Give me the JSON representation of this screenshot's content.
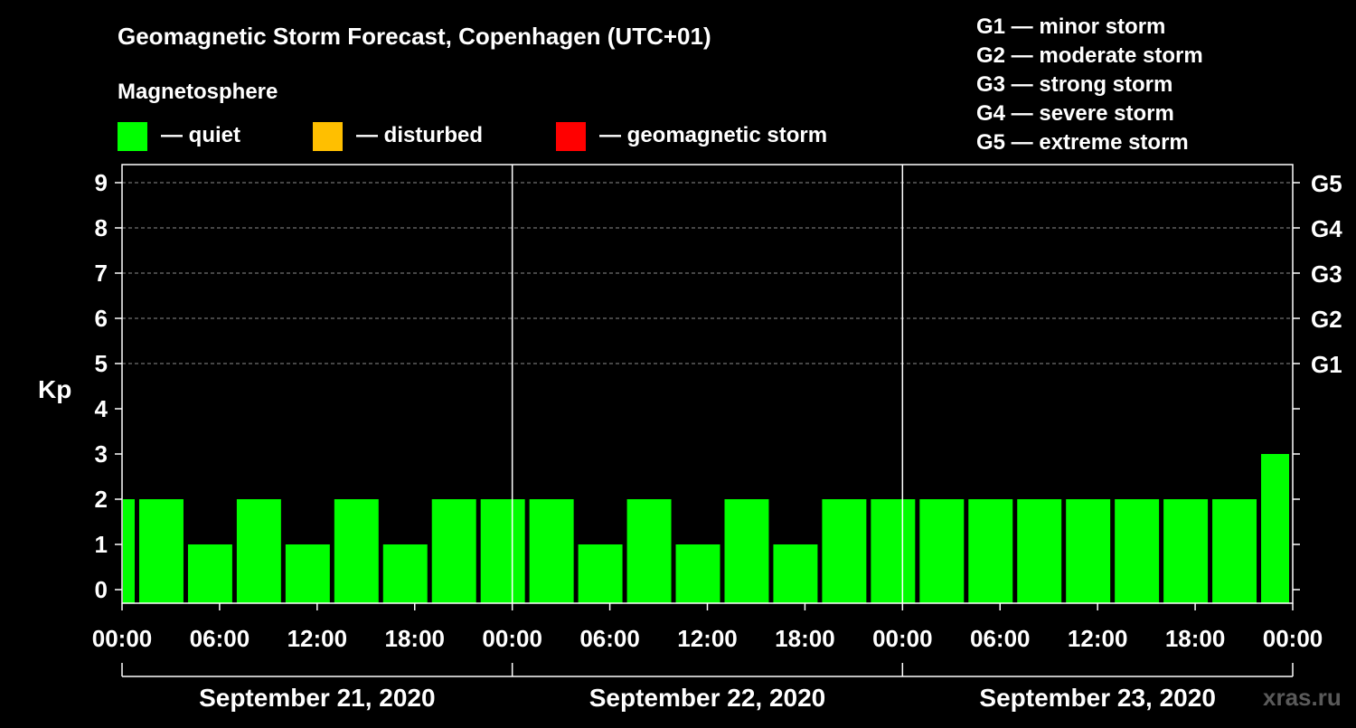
{
  "title": "Geomagnetic Storm Forecast, Copenhagen (UTC+01)",
  "legend": {
    "heading": "Magnetosphere",
    "items": [
      {
        "color": "#00ff00",
        "label": "— quiet"
      },
      {
        "color": "#ffbf00",
        "label": "— disturbed"
      },
      {
        "color": "#ff0000",
        "label": "— geomagnetic storm"
      }
    ]
  },
  "storm_scale": [
    "G1 — minor storm",
    "G2 — moderate storm",
    "G3 — strong storm",
    "G4 — severe storm",
    "G5 — extreme storm"
  ],
  "watermark": "xras.ru",
  "chart_data": {
    "type": "bar",
    "ylabel": "Kp",
    "ylim": [
      0,
      9
    ],
    "yticks": [
      0,
      1,
      2,
      3,
      4,
      5,
      6,
      7,
      8,
      9
    ],
    "right_ticks": [
      {
        "value": 5,
        "label": "G1"
      },
      {
        "value": 6,
        "label": "G2"
      },
      {
        "value": 7,
        "label": "G3"
      },
      {
        "value": 8,
        "label": "G4"
      },
      {
        "value": 9,
        "label": "G5"
      }
    ],
    "x_tick_labels": [
      "00:00",
      "06:00",
      "12:00",
      "18:00",
      "00:00",
      "06:00",
      "12:00",
      "18:00",
      "00:00",
      "06:00",
      "12:00",
      "18:00",
      "00:00"
    ],
    "days": [
      "September 21, 2020",
      "September 22, 2020",
      "September 23, 2020"
    ],
    "grid": true,
    "bars": [
      {
        "start": "2020-09-21 00:00",
        "end": "2020-09-21 01:00",
        "value": 2
      },
      {
        "start": "2020-09-21 01:00",
        "end": "2020-09-21 04:00",
        "value": 2
      },
      {
        "start": "2020-09-21 04:00",
        "end": "2020-09-21 07:00",
        "value": 1
      },
      {
        "start": "2020-09-21 07:00",
        "end": "2020-09-21 10:00",
        "value": 2
      },
      {
        "start": "2020-09-21 10:00",
        "end": "2020-09-21 13:00",
        "value": 1
      },
      {
        "start": "2020-09-21 13:00",
        "end": "2020-09-21 16:00",
        "value": 2
      },
      {
        "start": "2020-09-21 16:00",
        "end": "2020-09-21 19:00",
        "value": 1
      },
      {
        "start": "2020-09-21 19:00",
        "end": "2020-09-21 22:00",
        "value": 2
      },
      {
        "start": "2020-09-21 22:00",
        "end": "2020-09-22 01:00",
        "value": 2
      },
      {
        "start": "2020-09-22 01:00",
        "end": "2020-09-22 04:00",
        "value": 2
      },
      {
        "start": "2020-09-22 04:00",
        "end": "2020-09-22 07:00",
        "value": 1
      },
      {
        "start": "2020-09-22 07:00",
        "end": "2020-09-22 10:00",
        "value": 2
      },
      {
        "start": "2020-09-22 10:00",
        "end": "2020-09-22 13:00",
        "value": 1
      },
      {
        "start": "2020-09-22 13:00",
        "end": "2020-09-22 16:00",
        "value": 2
      },
      {
        "start": "2020-09-22 16:00",
        "end": "2020-09-22 19:00",
        "value": 1
      },
      {
        "start": "2020-09-22 19:00",
        "end": "2020-09-22 22:00",
        "value": 2
      },
      {
        "start": "2020-09-22 22:00",
        "end": "2020-09-23 01:00",
        "value": 2
      },
      {
        "start": "2020-09-23 01:00",
        "end": "2020-09-23 04:00",
        "value": 2
      },
      {
        "start": "2020-09-23 04:00",
        "end": "2020-09-23 07:00",
        "value": 2
      },
      {
        "start": "2020-09-23 07:00",
        "end": "2020-09-23 10:00",
        "value": 2
      },
      {
        "start": "2020-09-23 10:00",
        "end": "2020-09-23 13:00",
        "value": 2
      },
      {
        "start": "2020-09-23 13:00",
        "end": "2020-09-23 16:00",
        "value": 2
      },
      {
        "start": "2020-09-23 16:00",
        "end": "2020-09-23 19:00",
        "value": 2
      },
      {
        "start": "2020-09-23 19:00",
        "end": "2020-09-23 22:00",
        "value": 2
      },
      {
        "start": "2020-09-23 22:00",
        "end": "2020-09-24 00:00",
        "value": 3
      }
    ]
  }
}
